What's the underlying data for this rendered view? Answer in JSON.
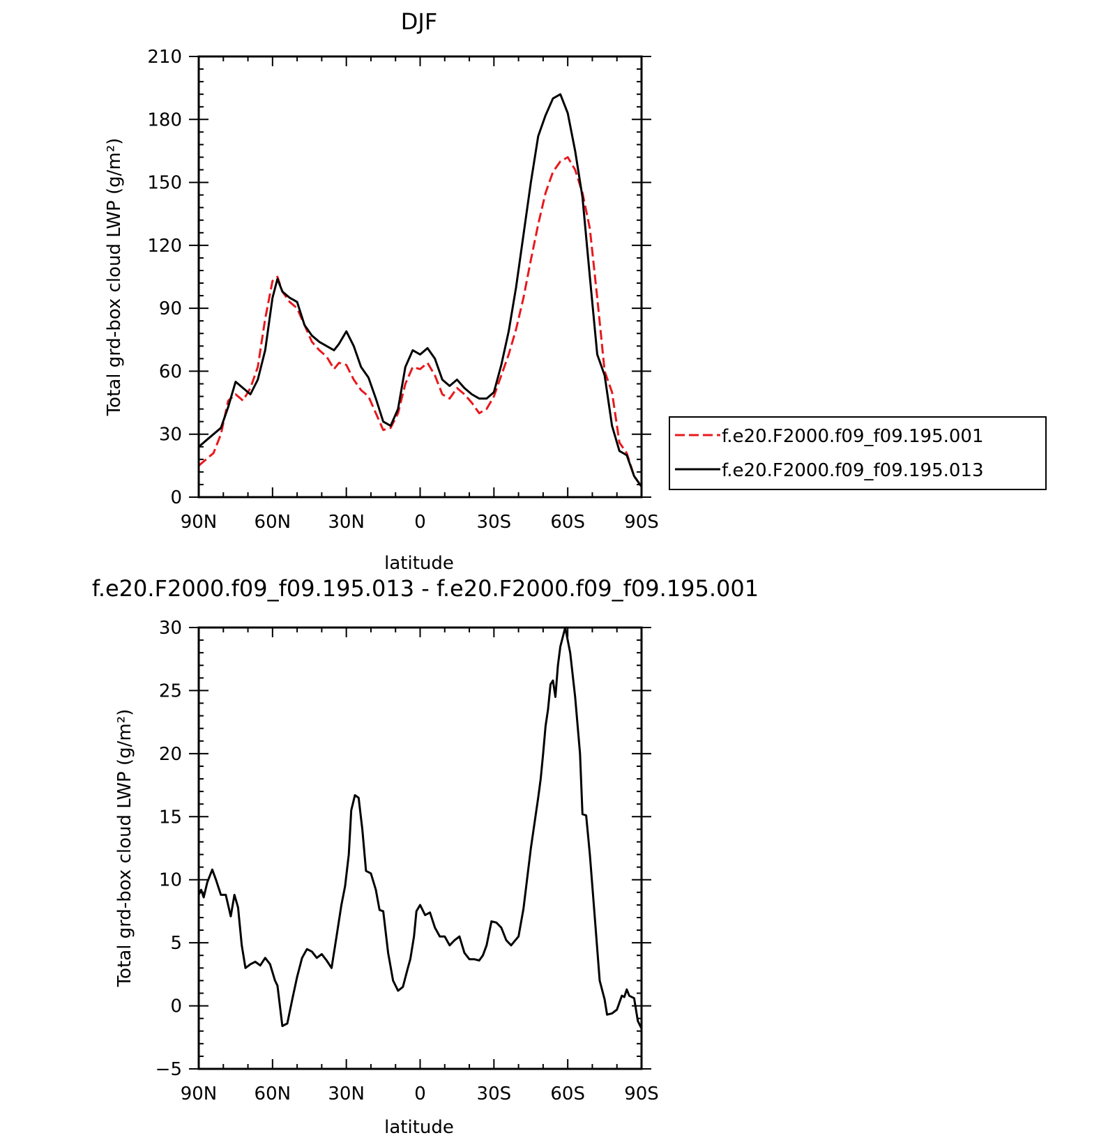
{
  "chart_data": [
    {
      "type": "line",
      "title": "DJF",
      "xlabel": "latitude",
      "ylabel": "Total grd-box cloud LWP (g/m²)",
      "xlim": [
        90,
        -90
      ],
      "ylim": [
        0,
        210
      ],
      "xticks": [
        90,
        60,
        30,
        0,
        -30,
        -60,
        -90
      ],
      "xtick_labels": [
        "90N",
        "60N",
        "30N",
        "0",
        "30S",
        "60S",
        "90S"
      ],
      "yticks": [
        0,
        30,
        60,
        90,
        120,
        150,
        180,
        210
      ],
      "ytick_labels": [
        "0",
        "30",
        "60",
        "90",
        "120",
        "150",
        "180",
        "210"
      ],
      "legend_position": "right",
      "series": [
        {
          "name": "f.e20.F2000.f09_f09.195.001",
          "color": "#e8181c",
          "style": "dashed",
          "x": [
            90,
            87,
            84,
            81,
            78,
            75,
            72,
            69,
            66,
            63,
            60,
            58,
            56,
            53,
            50,
            47,
            44,
            41,
            38,
            35,
            33,
            30,
            27,
            24,
            21,
            18,
            15,
            12,
            9,
            6,
            3,
            0,
            -3,
            -6,
            -9,
            -12,
            -15,
            -18,
            -21,
            -24,
            -27,
            -30,
            -33,
            -36,
            -39,
            -42,
            -45,
            -48,
            -51,
            -54,
            -57,
            -60,
            -63,
            -66,
            -69,
            -72,
            -75,
            -78,
            -81,
            -84,
            -87,
            -90
          ],
          "y": [
            15,
            18,
            21,
            30,
            46,
            49,
            46,
            52,
            62,
            85,
            103,
            105,
            98,
            93,
            90,
            82,
            74,
            70,
            67,
            61,
            64,
            63,
            56,
            51,
            48,
            40,
            32,
            33,
            40,
            54,
            62,
            61,
            64,
            58,
            49,
            47,
            52,
            49,
            45,
            40,
            42,
            48,
            58,
            68,
            80,
            95,
            113,
            130,
            145,
            155,
            160,
            162,
            156,
            145,
            128,
            95,
            60,
            50,
            26,
            21,
            10,
            5
          ]
        },
        {
          "name": "f.e20.F2000.f09_f09.195.013",
          "color": "#000000",
          "style": "solid",
          "x": [
            90,
            87,
            84,
            81,
            78,
            75,
            72,
            69,
            66,
            63,
            60,
            58,
            56,
            53,
            50,
            47,
            44,
            41,
            38,
            35,
            33,
            30,
            27,
            24,
            21,
            18,
            15,
            12,
            9,
            6,
            3,
            0,
            -3,
            -6,
            -9,
            -12,
            -15,
            -18,
            -21,
            -24,
            -27,
            -30,
            -33,
            -36,
            -39,
            -42,
            -45,
            -48,
            -51,
            -54,
            -57,
            -60,
            -63,
            -66,
            -69,
            -72,
            -75,
            -78,
            -81,
            -84,
            -87,
            -90
          ],
          "y": [
            24,
            27,
            30,
            33,
            43,
            55,
            52,
            49,
            56,
            70,
            95,
            104,
            98,
            95,
            93,
            82,
            77,
            74,
            72,
            70,
            73,
            79,
            72,
            62,
            57,
            47,
            36,
            34,
            42,
            62,
            70,
            68,
            71,
            66,
            56,
            53,
            56,
            52,
            49,
            47,
            47,
            50,
            63,
            79,
            100,
            125,
            150,
            172,
            182,
            190,
            192,
            183,
            165,
            143,
            105,
            68,
            58,
            34,
            22,
            20,
            10,
            5
          ]
        }
      ]
    },
    {
      "type": "line",
      "title": "f.e20.F2000.f09_f09.195.013 - f.e20.F2000.f09_f09.195.001",
      "xlabel": "latitude",
      "ylabel": "Total grd-box cloud LWP (g/m²)",
      "xlim": [
        90,
        -90
      ],
      "ylim": [
        -5,
        30
      ],
      "xticks": [
        90,
        60,
        30,
        0,
        -30,
        -60,
        -90
      ],
      "xtick_labels": [
        "90N",
        "60N",
        "30N",
        "0",
        "30S",
        "60S",
        "90S"
      ],
      "yticks": [
        -5,
        0,
        5,
        10,
        15,
        20,
        25,
        30
      ],
      "ytick_labels": [
        "−5",
        "0",
        "5",
        "10",
        "15",
        "20",
        "25",
        "30"
      ],
      "series": [
        {
          "color": "#000000",
          "style": "solid",
          "x": [
            90,
            89,
            88,
            86.5,
            84.5,
            83,
            81,
            79,
            77,
            75.5,
            74,
            72.5,
            71,
            69,
            67,
            65,
            63,
            61,
            59,
            58,
            56,
            54,
            52,
            50,
            48,
            46,
            44,
            42,
            40,
            38,
            36,
            34,
            32,
            30.5,
            29,
            28,
            26.5,
            25,
            23.5,
            22,
            20,
            18,
            16.5,
            15,
            13,
            11,
            9,
            7,
            5,
            4,
            2.5,
            1.5,
            0,
            -2,
            -4,
            -6,
            -8,
            -10,
            -12,
            -14,
            -16,
            -18,
            -20,
            -22,
            -24,
            -25.5,
            -27,
            -29,
            -31,
            -33,
            -35,
            -37,
            -40,
            -42,
            -45,
            -48,
            -49,
            -50,
            -51,
            -52,
            -53,
            -54,
            -55,
            -56,
            -57,
            -59,
            -61,
            -63,
            -65,
            -66,
            -67.5,
            -69,
            -71,
            -73,
            -75,
            -76,
            -78,
            -80,
            -82,
            -83,
            -84,
            -85,
            -87,
            -88.5,
            -90
          ],
          "y": [
            8.8,
            9.2,
            8.6,
            9.8,
            10.8,
            10,
            8.8,
            8.8,
            7.1,
            8.8,
            7.8,
            4.8,
            3,
            3.3,
            3.5,
            3.2,
            3.8,
            3.3,
            2,
            1.6,
            -1.6,
            -1.4,
            0.5,
            2.3,
            3.8,
            4.5,
            4.3,
            3.8,
            4.1,
            3.6,
            3,
            5.5,
            8,
            9.5,
            12,
            15.5,
            16.7,
            16.5,
            14,
            10.7,
            10.5,
            9.2,
            7.6,
            7.5,
            4.2,
            2,
            1.2,
            1.5,
            3,
            3.7,
            5.5,
            7.5,
            8,
            7.2,
            7.4,
            6.2,
            5.5,
            5.5,
            4.8,
            5.2,
            5.5,
            4.2,
            3.7,
            3.7,
            3.6,
            4,
            4.8,
            6.7,
            6.6,
            6.2,
            5.2,
            4.8,
            5.5,
            7.7,
            12.5,
            16.5,
            18,
            20,
            22.2,
            23.5,
            25.5,
            25.8,
            24.5,
            27,
            28.5,
            30,
            28,
            24.5,
            20,
            15.2,
            15.1,
            12,
            7,
            2,
            0.5,
            -0.7,
            -0.6,
            -0.3,
            0.8,
            0.7,
            1.3,
            0.8,
            0.6,
            -1.2,
            -1.8
          ]
        }
      ]
    }
  ]
}
